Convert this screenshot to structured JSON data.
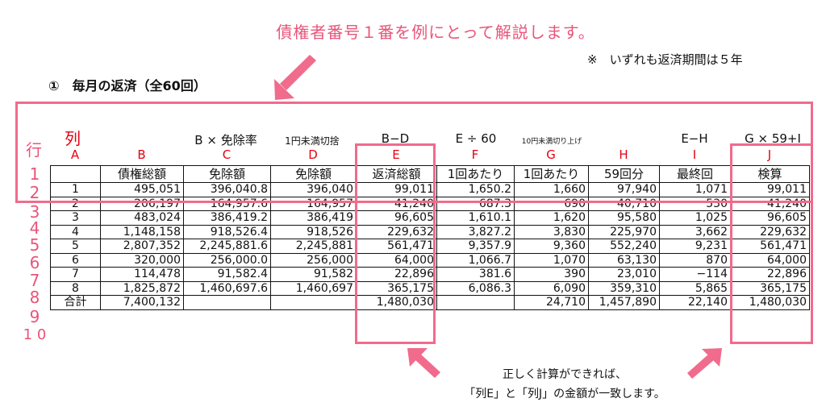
{
  "callout_top": "債権者番号１番を例にとって解説します。",
  "note": "※　いずれも返済期間は５年",
  "heading": "①　毎月の返済（全60回）",
  "col_label": "列",
  "row_label": "行",
  "row_numbers": [
    "1",
    "2",
    "3",
    "4",
    "5",
    "6",
    "7",
    "8",
    "9",
    "1 0"
  ],
  "formulas": {
    "C": "B × 免除率",
    "D": "1円未満切捨",
    "E": "B−D",
    "F": "E ÷ 60",
    "G": "10円未満切り上げ",
    "I": "E−H",
    "J": "G × 59+I"
  },
  "column_letters": [
    "A",
    "B",
    "C",
    "D",
    "E",
    "F",
    "G",
    "H",
    "I",
    "J"
  ],
  "headers": [
    "",
    "債権総額",
    "免除額",
    "免除額",
    "返済総額",
    "1回あたり",
    "1回あたり",
    "59回分",
    "最終回",
    "検算"
  ],
  "rows": [
    [
      "1",
      "495,051",
      "396,040.8",
      "396,040",
      "99,011",
      "1,650.2",
      "1,660",
      "97,940",
      "1,071",
      "99,011"
    ],
    [
      "2",
      "206,197",
      "164,957.6",
      "164,957",
      "41,240",
      "687.3",
      "690",
      "40,710",
      "530",
      "41,240"
    ],
    [
      "3",
      "483,024",
      "386,419.2",
      "386,419",
      "96,605",
      "1,610.1",
      "1,620",
      "95,580",
      "1,025",
      "96,605"
    ],
    [
      "4",
      "1,148,158",
      "918,526.4",
      "918,526",
      "229,632",
      "3,827.2",
      "3,830",
      "225,970",
      "3,662",
      "229,632"
    ],
    [
      "5",
      "2,807,352",
      "2,245,881.6",
      "2,245,881",
      "561,471",
      "9,357.9",
      "9,360",
      "552,240",
      "9,231",
      "561,471"
    ],
    [
      "6",
      "320,000",
      "256,000.0",
      "256,000",
      "64,000",
      "1,066.7",
      "1,070",
      "63,130",
      "870",
      "64,000"
    ],
    [
      "7",
      "114,478",
      "91,582.4",
      "91,582",
      "22,896",
      "381.6",
      "390",
      "23,010",
      "−114",
      "22,896"
    ],
    [
      "8",
      "1,825,872",
      "1,460,697.6",
      "1,460,697",
      "365,175",
      "6,086.3",
      "6,090",
      "359,310",
      "5,865",
      "365,175"
    ],
    [
      "合計",
      "7,400,132",
      "",
      "",
      "1,480,030",
      "",
      "24,710",
      "1,457,890",
      "22,140",
      "1,480,030"
    ]
  ],
  "callout_bottom": {
    "line1": "正しく計算ができれば、",
    "line2": "「列E」と「列J」の金額が一致します。"
  },
  "colors": {
    "accent_pink": "#e9557a",
    "letter_red": "#e60012",
    "box_pink": "#f06b8c"
  }
}
